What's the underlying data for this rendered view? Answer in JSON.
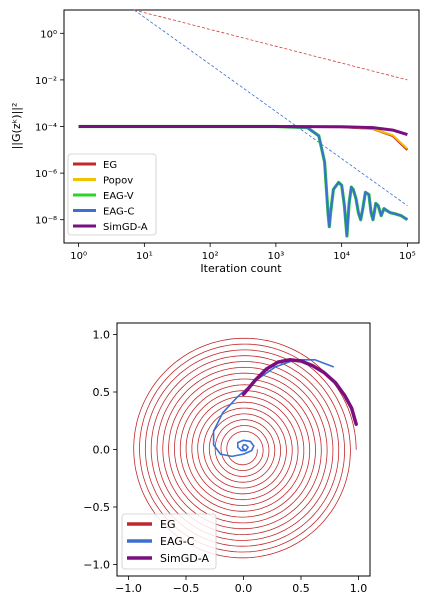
{
  "chart_data": [
    {
      "type": "line",
      "xscale": "log",
      "yscale": "log",
      "xlim": [
        0.6,
        150000
      ],
      "ylim": [
        1e-09,
        10
      ],
      "xlabel": "Iteration count",
      "ylabel": "||G(z^k)||^2",
      "ylabel_display": "||G(zᵏ)||²",
      "xticks": [
        1,
        10,
        100,
        1000,
        10000,
        100000
      ],
      "xticklabels": [
        "10⁰",
        "10¹",
        "10²",
        "10³",
        "10⁴",
        "10⁵"
      ],
      "yticks": [
        1e-08,
        1e-06,
        0.0001,
        0.01,
        1
      ],
      "yticklabels": [
        "10⁻⁸",
        "10⁻⁶",
        "10⁻⁴",
        "10⁻²",
        "10⁰"
      ],
      "grid": false,
      "legend_position": "lower-left",
      "series": [
        {
          "name": "EG",
          "color": "#c0282b",
          "x": [
            1,
            10,
            100,
            1000,
            10000,
            30000,
            60000,
            100000
          ],
          "y": [
            0.0001,
            0.0001,
            0.0001,
            0.0001,
            9.6e-05,
            8e-05,
            4e-05,
            1e-05
          ]
        },
        {
          "name": "Popov",
          "color": "#f2c200",
          "x": [
            1,
            10,
            100,
            1000,
            10000,
            30000,
            60000,
            100000
          ],
          "y": [
            0.0001,
            0.0001,
            0.0001,
            0.0001,
            9.6e-05,
            8e-05,
            4.2e-05,
            1.1e-05
          ]
        },
        {
          "name": "EAG-V",
          "color": "#2ad42a",
          "x": [
            1,
            10,
            100,
            1000,
            3000,
            4500,
            5500,
            6200,
            6500,
            6800,
            7500,
            9000,
            10000,
            11000,
            12000,
            13000,
            14000,
            15000,
            16500,
            18000,
            19500,
            21000,
            23000,
            26000,
            28000,
            30000,
            33000,
            36000,
            40000,
            44000,
            48000,
            55000,
            65000,
            80000,
            100000
          ],
          "y": [
            0.0001,
            0.0001,
            0.0001,
            0.0001,
            9e-05,
            4e-05,
            3e-06,
            2e-08,
            5e-09,
            2e-08,
            2e-07,
            4e-07,
            3e-07,
            4e-08,
            2e-09,
            5e-08,
            2.5e-07,
            2e-07,
            8e-08,
            2e-08,
            1e-08,
            3e-08,
            1.5e-07,
            1.2e-07,
            2e-08,
            1e-08,
            5e-08,
            4e-08,
            1.5e-08,
            3e-08,
            2.5e-08,
            2e-08,
            1.8e-08,
            1.5e-08,
            1e-08
          ]
        },
        {
          "name": "EAG-C",
          "color": "#3b6fd1",
          "x": [
            1,
            10,
            100,
            1000,
            3000,
            4500,
            5500,
            6200,
            6500,
            6800,
            7500,
            9000,
            10000,
            11000,
            12000,
            13000,
            14000,
            15000,
            16500,
            18000,
            19500,
            21000,
            23000,
            26000,
            28000,
            30000,
            33000,
            36000,
            40000,
            44000,
            48000,
            55000,
            65000,
            80000,
            100000
          ],
          "y": [
            0.0001,
            0.0001,
            0.0001,
            0.0001,
            9e-05,
            4e-05,
            3e-06,
            2e-08,
            5e-09,
            2e-08,
            2e-07,
            4e-07,
            3e-07,
            4e-08,
            2e-09,
            5e-08,
            2.5e-07,
            2e-07,
            8e-08,
            2e-08,
            1e-08,
            3e-08,
            1.5e-07,
            1.2e-07,
            2e-08,
            1e-08,
            5e-08,
            4e-08,
            1.5e-08,
            3e-08,
            2.5e-08,
            2e-08,
            1.8e-08,
            1.5e-08,
            1e-08
          ]
        },
        {
          "name": "SimGD-A",
          "color": "#7a0f80",
          "x": [
            1,
            10,
            100,
            1000,
            10000,
            30000,
            60000,
            100000
          ],
          "y": [
            0.0001,
            0.0001,
            0.0001,
            0.0001,
            9.8e-05,
            9e-05,
            7e-05,
            4.5e-05
          ]
        }
      ],
      "reference_lines": [
        {
          "color": "#d43b3b",
          "style": "dashed",
          "x": [
            7,
            100000
          ],
          "y": [
            10,
            0.01
          ]
        },
        {
          "color": "#3b6fd1",
          "style": "dashed",
          "x": [
            7,
            100000
          ],
          "y": [
            10,
            4e-08
          ]
        }
      ]
    },
    {
      "type": "line",
      "xlim": [
        -1.1,
        1.1
      ],
      "ylim": [
        -1.1,
        1.1
      ],
      "xticks": [
        -1.0,
        -0.5,
        0.0,
        0.5,
        1.0
      ],
      "xticklabels": [
        "−1.0",
        "−0.5",
        "0.0",
        "0.5",
        "1.0"
      ],
      "yticks": [
        -1.0,
        -0.5,
        0.0,
        0.5,
        1.0
      ],
      "yticklabels": [
        "−1.0",
        "−0.5",
        "0.0",
        "0.5",
        "1.0"
      ],
      "grid": false,
      "legend_position": "lower-left",
      "series": [
        {
          "name": "EG",
          "color": "#c0282b",
          "curve": "spiral",
          "start_radius": 0.98,
          "end_radius": 0.12,
          "turns": 17
        },
        {
          "name": "EAG-C",
          "color": "#3b6fd1",
          "curve": "spiral",
          "x": [
            0.78,
            0.62,
            0.45,
            0.28,
            0.12,
            -0.05,
            -0.18,
            -0.26,
            -0.26,
            -0.2,
            -0.1,
            0.0,
            0.07,
            0.09,
            0.06,
            0.0,
            -0.05,
            -0.05,
            -0.02,
            0.02,
            0.04,
            0.02,
            0.0,
            -0.01,
            0.0,
            0.01
          ],
          "y": [
            0.72,
            0.78,
            0.78,
            0.72,
            0.61,
            0.46,
            0.32,
            0.16,
            0.04,
            -0.04,
            -0.06,
            -0.04,
            -0.01,
            0.03,
            0.07,
            0.08,
            0.06,
            0.02,
            -0.01,
            -0.01,
            0.02,
            0.04,
            0.04,
            0.02,
            0.0,
            0.0
          ]
        },
        {
          "name": "SimGD-A",
          "color": "#7a0f80",
          "x": [
            0.0,
            0.1,
            0.2,
            0.3,
            0.4,
            0.5,
            0.6,
            0.7,
            0.8,
            0.88,
            0.94,
            0.98
          ],
          "y": [
            0.48,
            0.6,
            0.7,
            0.76,
            0.78,
            0.77,
            0.73,
            0.67,
            0.58,
            0.47,
            0.36,
            0.22
          ]
        }
      ]
    }
  ]
}
